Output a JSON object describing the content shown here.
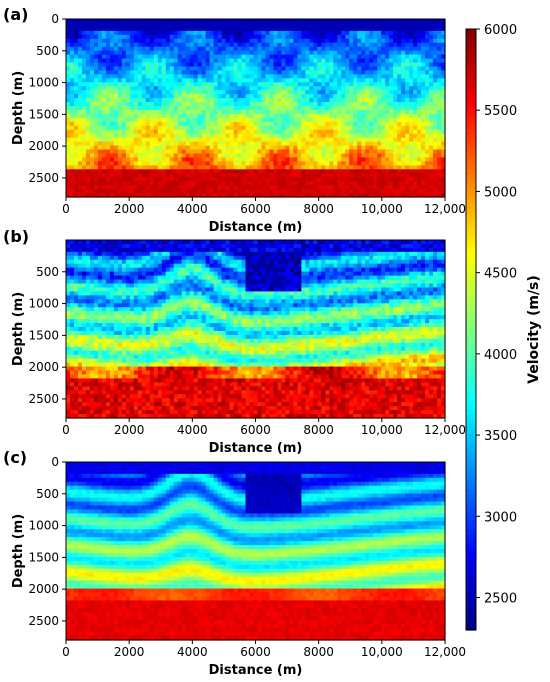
{
  "chart_data": {
    "type": "heatmap",
    "panels": [
      {
        "label": "(a)",
        "xlabel": "Distance (m)",
        "ylabel": "Depth (m)",
        "xlim": [
          0,
          12000
        ],
        "ylim": [
          2800,
          0
        ],
        "xticks": [
          "0",
          "2000",
          "4000",
          "6000",
          "8000",
          "10,000",
          "12,000"
        ],
        "yticks": [
          "0",
          "500",
          "1000",
          "1500",
          "2000",
          "2500"
        ],
        "description_model": "smooth",
        "seed": 11
      },
      {
        "label": "(b)",
        "xlabel": "Distance (m)",
        "ylabel": "Depth (m)",
        "xlim": [
          0,
          12000
        ],
        "ylim": [
          2800,
          0
        ],
        "xticks": [
          "0",
          "2000",
          "4000",
          "6000",
          "8000",
          "10,000",
          "12,000"
        ],
        "yticks": [
          "500",
          "1000",
          "1500",
          "2000",
          "2500"
        ],
        "description_model": "layered-noisy",
        "seed": 23
      },
      {
        "label": "(c)",
        "xlabel": "Distance (m)",
        "ylabel": "Depth (m)",
        "xlim": [
          0,
          12000
        ],
        "ylim": [
          2800,
          0
        ],
        "xticks": [
          "0",
          "2000",
          "4000",
          "6000",
          "8000",
          "10,000",
          "12,000"
        ],
        "yticks": [
          "0",
          "500",
          "1000",
          "1500",
          "2000",
          "2500"
        ],
        "description_model": "layered-clean",
        "seed": 37
      }
    ],
    "colorbar": {
      "label": "Velocity (m/s)",
      "colormap": "jet",
      "range": [
        2300,
        6000
      ],
      "ticks": [
        "6000",
        "5500",
        "5000",
        "4500",
        "4000",
        "3500",
        "3000",
        "2500"
      ],
      "tick_values": [
        6000,
        5500,
        5000,
        4500,
        4000,
        3500,
        3000,
        2500
      ]
    }
  }
}
